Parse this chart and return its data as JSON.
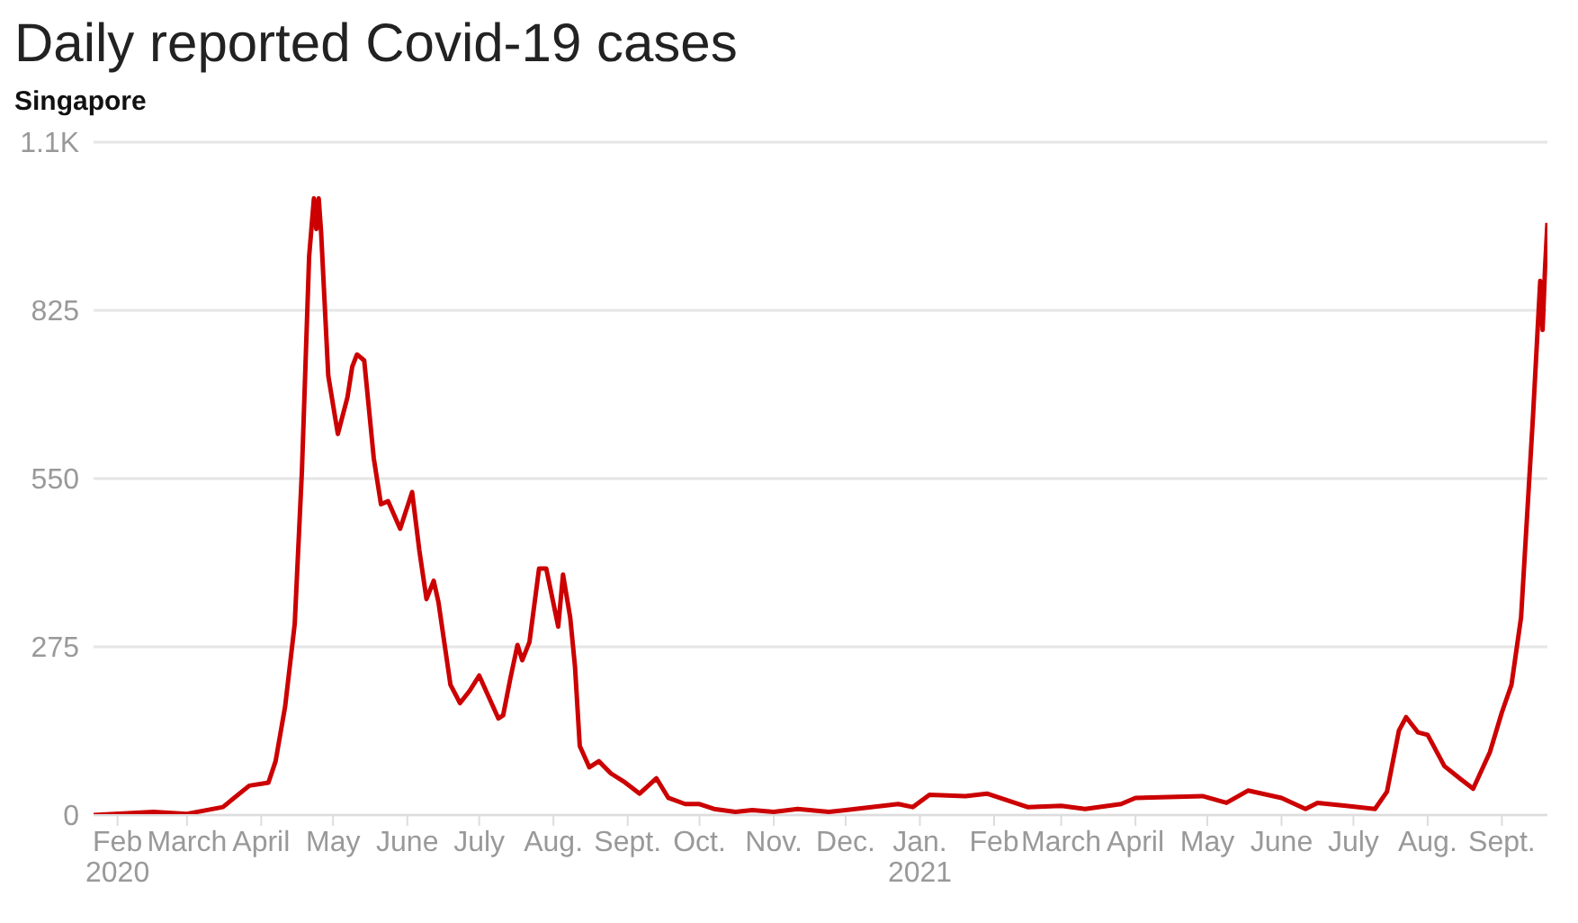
{
  "chart_data": {
    "type": "line",
    "title": "Daily reported Covid-19 cases",
    "subtitle": "Singapore",
    "xlim": [
      "2020-01-22",
      "2021-09-20"
    ],
    "xticks": [
      {
        "value": "2020-02-01",
        "label": "Feb\n2020"
      },
      {
        "value": "2020-03-01",
        "label": "March"
      },
      {
        "value": "2020-04-01",
        "label": "April"
      },
      {
        "value": "2020-05-01",
        "label": "May"
      },
      {
        "value": "2020-06-01",
        "label": "June"
      },
      {
        "value": "2020-07-01",
        "label": "July"
      },
      {
        "value": "2020-08-01",
        "label": "Aug."
      },
      {
        "value": "2020-09-01",
        "label": "Sept."
      },
      {
        "value": "2020-10-01",
        "label": "Oct."
      },
      {
        "value": "2020-11-01",
        "label": "Nov."
      },
      {
        "value": "2020-12-01",
        "label": "Dec."
      },
      {
        "value": "2021-01-01",
        "label": "Jan.\n2021"
      },
      {
        "value": "2021-02-01",
        "label": "Feb"
      },
      {
        "value": "2021-03-01",
        "label": "March"
      },
      {
        "value": "2021-04-01",
        "label": "April"
      },
      {
        "value": "2021-05-01",
        "label": "May"
      },
      {
        "value": "2021-06-01",
        "label": "June"
      },
      {
        "value": "2021-07-01",
        "label": "July"
      },
      {
        "value": "2021-08-01",
        "label": "Aug."
      },
      {
        "value": "2021-09-01",
        "label": "Sept."
      }
    ],
    "ylim": [
      0,
      1100
    ],
    "yticks": [
      0,
      275,
      550,
      825,
      {
        "value": 1100,
        "label": "1.1K"
      }
    ],
    "grid": "y",
    "marker": "none",
    "line_style": "solid",
    "series": [
      {
        "color": "#cc0000",
        "x": [
          "2020-01-22",
          "2020-02-16",
          "2020-03-01",
          "2020-03-16",
          "2020-03-27",
          "2020-04-04",
          "2020-04-07",
          "2020-04-11",
          "2020-04-15",
          "2020-04-18",
          "2020-04-21",
          "2020-04-23",
          "2020-04-24",
          "2020-04-25",
          "2020-04-26",
          "2020-04-29",
          "2020-05-03",
          "2020-05-07",
          "2020-05-09",
          "2020-05-11",
          "2020-05-14",
          "2020-05-18",
          "2020-05-21",
          "2020-05-24",
          "2020-05-29",
          "2020-06-03",
          "2020-06-06",
          "2020-06-09",
          "2020-06-12",
          "2020-06-14",
          "2020-06-19",
          "2020-06-23",
          "2020-06-27",
          "2020-07-01",
          "2020-07-05",
          "2020-07-09",
          "2020-07-11",
          "2020-07-14",
          "2020-07-17",
          "2020-07-19",
          "2020-07-22",
          "2020-07-26",
          "2020-07-29",
          "2020-08-03",
          "2020-08-05",
          "2020-08-08",
          "2020-08-10",
          "2020-08-12",
          "2020-08-16",
          "2020-08-20",
          "2020-08-25",
          "2020-08-31",
          "2020-09-06",
          "2020-09-13",
          "2020-09-18",
          "2020-09-25",
          "2020-10-01",
          "2020-10-07",
          "2020-10-16",
          "2020-10-23",
          "2020-11-01",
          "2020-11-11",
          "2020-11-24",
          "2020-12-01",
          "2020-12-23",
          "2020-12-29",
          "2021-01-05",
          "2021-01-20",
          "2021-01-29",
          "2021-02-15",
          "2021-03-01",
          "2021-03-11",
          "2021-03-26",
          "2021-04-01",
          "2021-04-29",
          "2021-05-09",
          "2021-05-18",
          "2021-06-01",
          "2021-06-11",
          "2021-06-16",
          "2021-06-28",
          "2021-07-10",
          "2021-07-15",
          "2021-07-20",
          "2021-07-23",
          "2021-07-28",
          "2021-08-01",
          "2021-08-08",
          "2021-08-15",
          "2021-08-20",
          "2021-08-27",
          "2021-09-01",
          "2021-09-05",
          "2021-09-09",
          "2021-09-14",
          "2021-09-17",
          "2021-09-18",
          "2021-09-19",
          "2021-09-20"
        ],
        "values": [
          0,
          5,
          2,
          13,
          48,
          53,
          88,
          178,
          313,
          563,
          913,
          1008,
          958,
          1008,
          953,
          718,
          623,
          683,
          733,
          753,
          743,
          583,
          508,
          513,
          468,
          528,
          433,
          353,
          383,
          348,
          213,
          183,
          203,
          228,
          193,
          158,
          163,
          223,
          278,
          253,
          283,
          403,
          403,
          308,
          393,
          323,
          243,
          113,
          78,
          88,
          68,
          53,
          35,
          60,
          28,
          18,
          18,
          10,
          5,
          8,
          5,
          10,
          5,
          8,
          18,
          13,
          33,
          31,
          35,
          13,
          15,
          10,
          18,
          28,
          31,
          20,
          40,
          28,
          10,
          20,
          15,
          10,
          38,
          138,
          160,
          135,
          131,
          80,
          58,
          43,
          103,
          168,
          213,
          323,
          653,
          873,
          793,
          893,
          968
        ]
      }
    ]
  }
}
